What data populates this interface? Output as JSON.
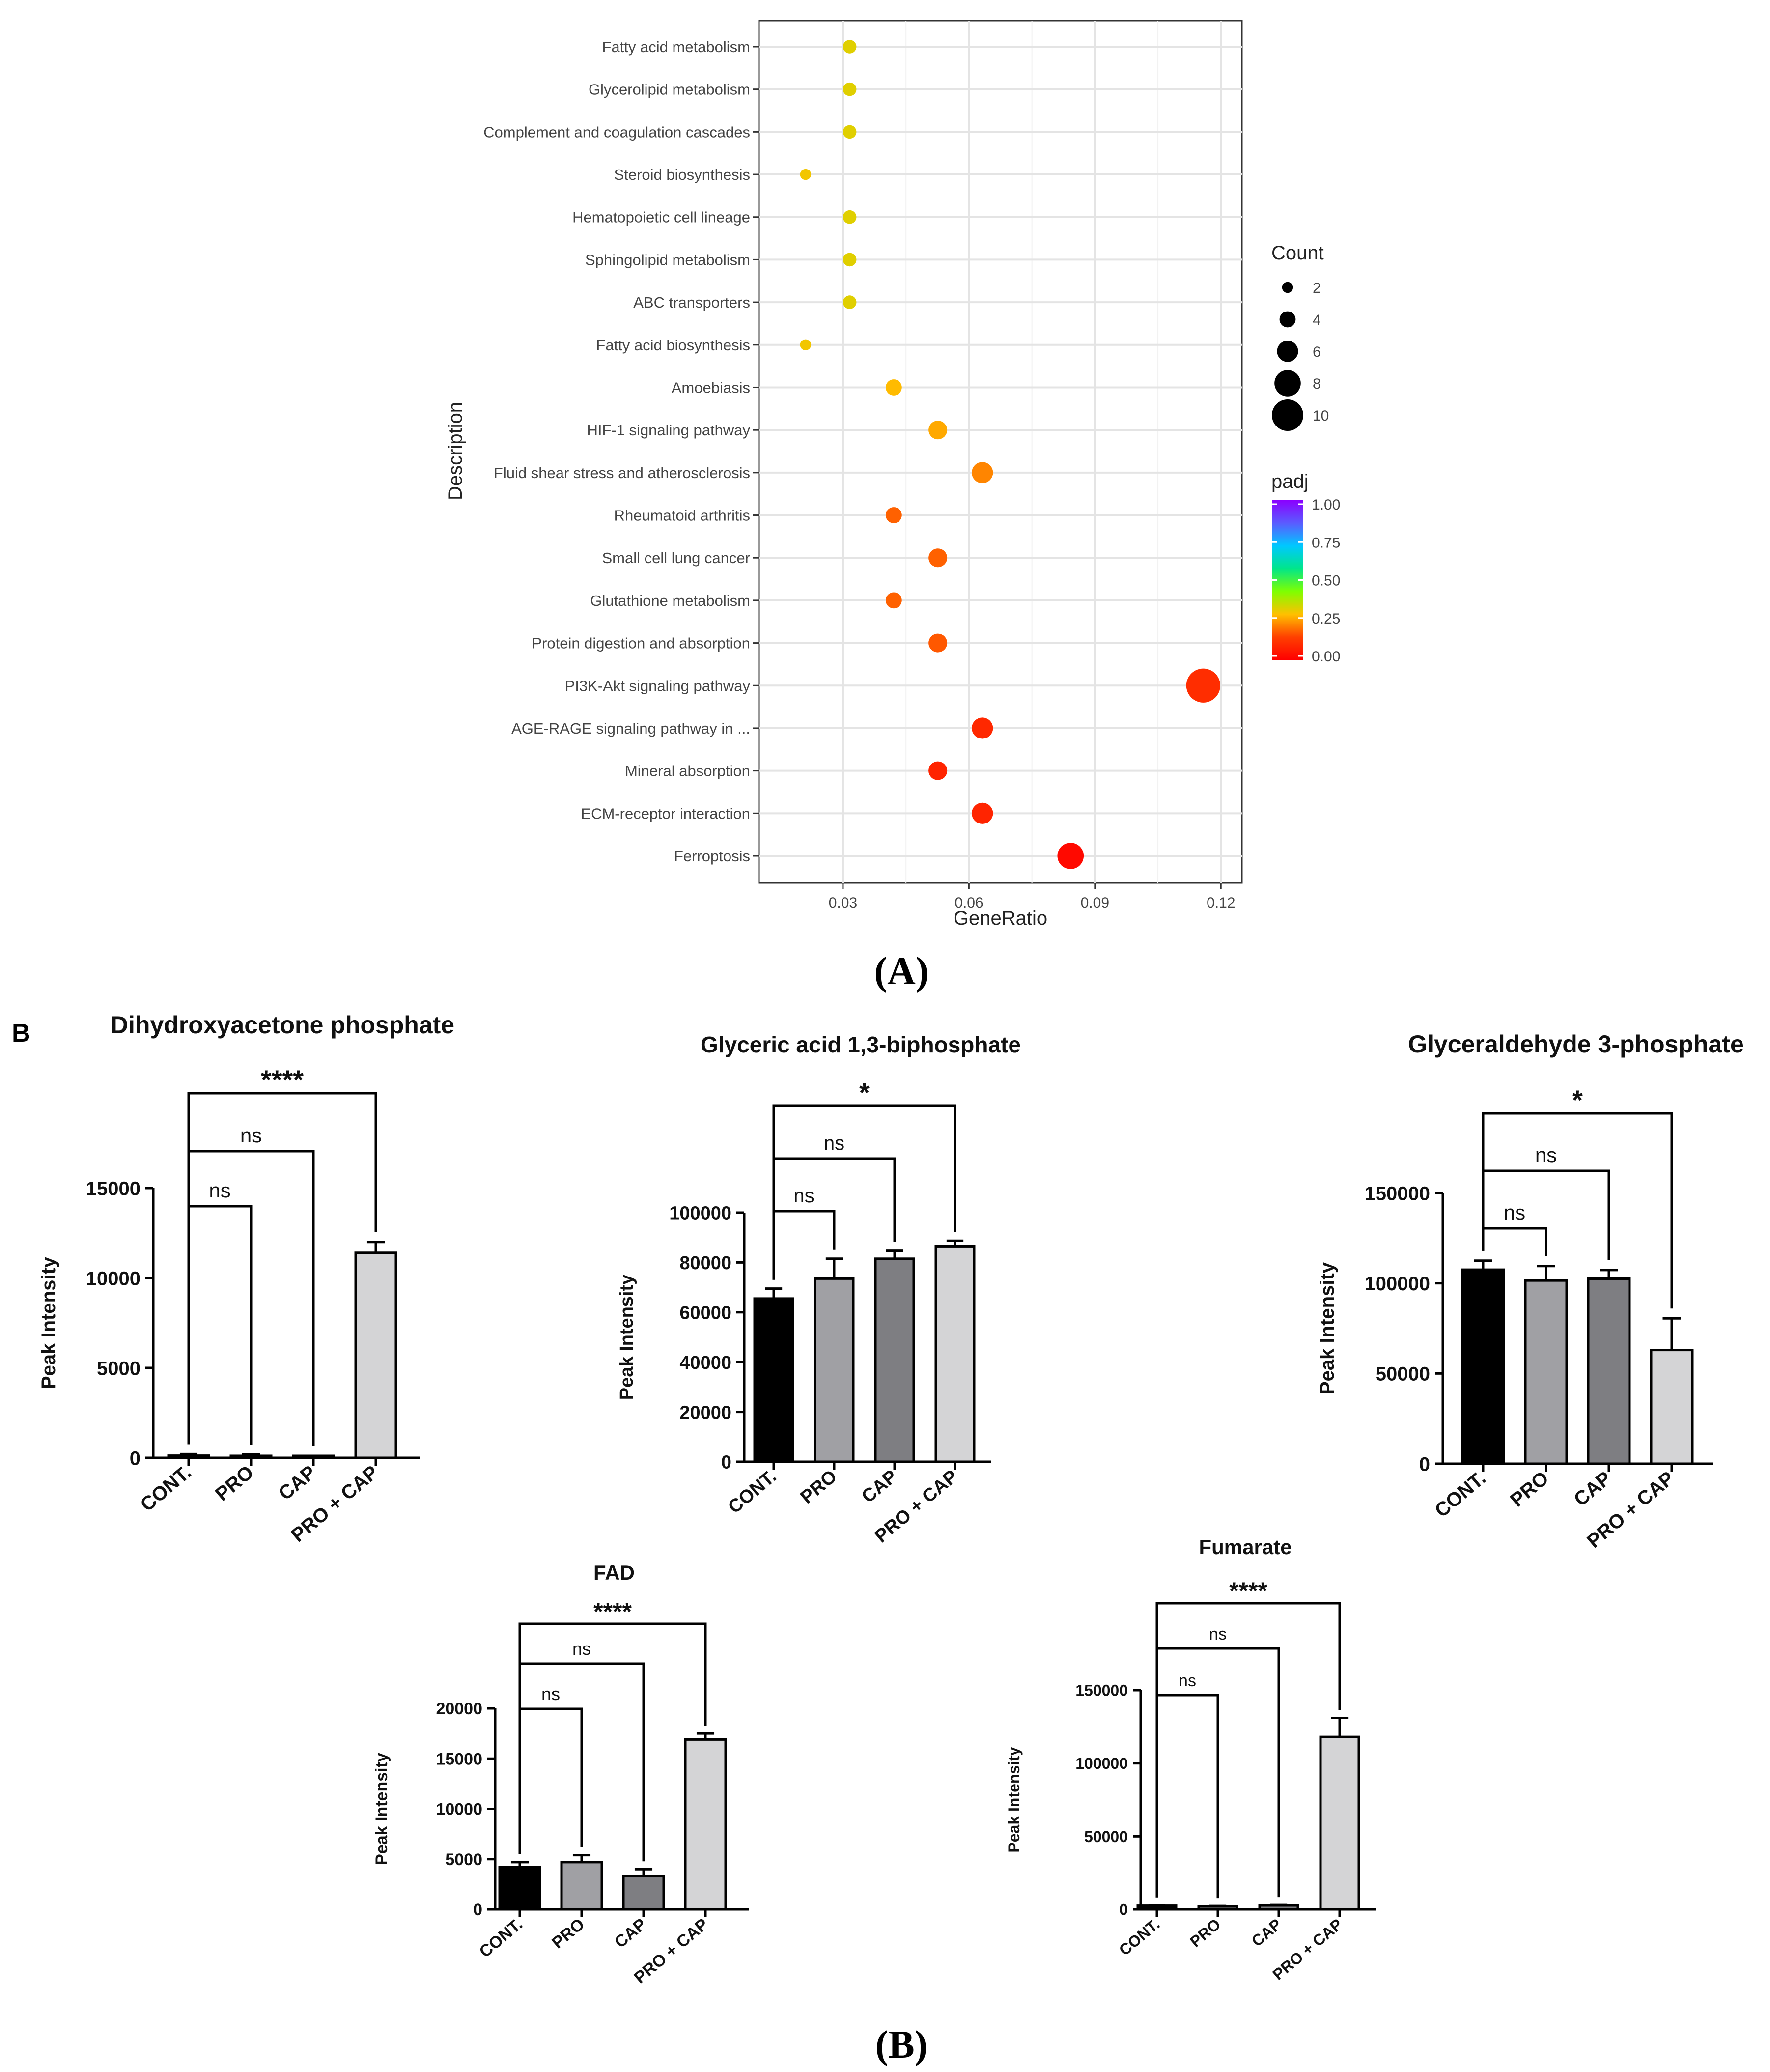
{
  "panel_a": {
    "caption": "(A)",
    "chart_data": {
      "type": "scatter",
      "title": "",
      "xlabel": "GeneRatio",
      "ylabel": "Description",
      "xlim": [
        0.01,
        0.125
      ],
      "xticks": [
        0.03,
        0.06,
        0.09,
        0.12
      ],
      "xtick_labels": [
        "0.03",
        "0.06",
        "0.09",
        "0.12"
      ],
      "categories": [
        "Fatty acid metabolism",
        "Glycerolipid metabolism",
        "Complement and coagulation cascades",
        "Steroid biosynthesis",
        "Hematopoietic cell lineage",
        "Sphingolipid metabolism",
        "ABC transporters",
        "Fatty acid biosynthesis",
        "Amoebiasis",
        "HIF-1 signaling pathway",
        "Fluid shear stress and atherosclerosis",
        "Rheumatoid arthritis",
        "Small cell lung cancer",
        "Glutathione metabolism",
        "Protein digestion and absorption",
        "PI3K-Akt signaling pathway",
        "AGE-RAGE signaling pathway in ...",
        "Mineral absorption",
        "ECM-receptor interaction",
        "Ferroptosis"
      ],
      "gene_ratio": [
        0.0316,
        0.0316,
        0.0316,
        0.0211,
        0.0316,
        0.0316,
        0.0316,
        0.0211,
        0.0421,
        0.0526,
        0.0632,
        0.0421,
        0.0526,
        0.0421,
        0.0526,
        0.1158,
        0.0632,
        0.0526,
        0.0632,
        0.0842
      ],
      "count": [
        3,
        3,
        3,
        2,
        3,
        3,
        3,
        2,
        4,
        5,
        6,
        4,
        5,
        4,
        5,
        11,
        6,
        5,
        6,
        8
      ],
      "padj": [
        0.32,
        0.32,
        0.32,
        0.3,
        0.32,
        0.32,
        0.32,
        0.3,
        0.28,
        0.26,
        0.22,
        0.18,
        0.18,
        0.18,
        0.17,
        0.1,
        0.09,
        0.08,
        0.08,
        0.02
      ],
      "legend_count": {
        "title": "Count",
        "values": [
          2,
          4,
          6,
          8,
          10
        ],
        "labels": [
          "2",
          "4",
          "6",
          "8",
          "10"
        ]
      },
      "legend_padj": {
        "title": "padj",
        "ticks": [
          1.0,
          0.75,
          0.5,
          0.25,
          0.0
        ],
        "labels": [
          "1.00",
          "0.75",
          "0.50",
          "0.25",
          "0.00"
        ],
        "colors": [
          "#8b00ff",
          "#5b5bff",
          "#00c8ff",
          "#00e68a",
          "#7fff00",
          "#ffc000",
          "#ff4000",
          "#ff0000"
        ]
      }
    }
  },
  "panel_b": {
    "letter": "B",
    "caption": "(B)",
    "groups": [
      "CONT.",
      "PRO",
      "CAP",
      "PRO + CAP"
    ],
    "bar_colors": [
      "#000000",
      "#a0a0a4",
      "#7e7e82",
      "#d4d4d6"
    ],
    "ylabel": "Peak Intensity",
    "chart_data": [
      {
        "type": "bar",
        "title": "Dihydroxyacetone phosphate",
        "ylabel": "Peak Intensity",
        "categories": [
          "CONT.",
          "PRO",
          "CAP",
          "PRO + CAP"
        ],
        "values": [
          120,
          110,
          60,
          11400
        ],
        "errors": [
          90,
          80,
          50,
          600
        ],
        "ylim": [
          0,
          15000
        ],
        "yticks": [
          0,
          5000,
          10000,
          15000
        ],
        "ytick_labels": [
          "0",
          "5000",
          "10000",
          "15000"
        ],
        "brackets": [
          {
            "from": "CONT.",
            "to": "PRO",
            "label": "ns"
          },
          {
            "from": "CONT.",
            "to": "CAP",
            "label": "ns"
          },
          {
            "from": "CONT.",
            "to": "PRO + CAP",
            "label": "****"
          }
        ]
      },
      {
        "type": "bar",
        "title": "Glyceric acid 1,3-biphosphate",
        "ylabel": "Peak Intensity",
        "categories": [
          "CONT.",
          "PRO",
          "CAP",
          "PRO + CAP"
        ],
        "values": [
          65500,
          73500,
          81500,
          86500
        ],
        "errors": [
          4000,
          8000,
          3200,
          2200
        ],
        "ylim": [
          0,
          100000
        ],
        "yticks": [
          0,
          20000,
          40000,
          60000,
          80000,
          100000
        ],
        "ytick_labels": [
          "0",
          "20000",
          "40000",
          "60000",
          "80000",
          "100000"
        ],
        "brackets": [
          {
            "from": "CONT.",
            "to": "PRO",
            "label": "ns"
          },
          {
            "from": "CONT.",
            "to": "CAP",
            "label": "ns"
          },
          {
            "from": "CONT.",
            "to": "PRO + CAP",
            "label": "*"
          }
        ]
      },
      {
        "type": "bar",
        "title": "Glyceraldehyde 3-phosphate",
        "ylabel": "Peak Intensity",
        "categories": [
          "CONT.",
          "PRO",
          "CAP",
          "PRO + CAP"
        ],
        "values": [
          107500,
          101500,
          102500,
          63000
        ],
        "errors": [
          5000,
          8000,
          4800,
          17500
        ],
        "ylim": [
          0,
          150000
        ],
        "yticks": [
          0,
          50000,
          100000,
          150000
        ],
        "ytick_labels": [
          "0",
          "50000",
          "100000",
          "150000"
        ],
        "brackets": [
          {
            "from": "CONT.",
            "to": "PRO",
            "label": "ns"
          },
          {
            "from": "CONT.",
            "to": "CAP",
            "label": "ns"
          },
          {
            "from": "CONT.",
            "to": "PRO + CAP",
            "label": "*"
          }
        ]
      },
      {
        "type": "bar",
        "title": "FAD",
        "ylabel": "Peak Intensity",
        "categories": [
          "CONT.",
          "PRO",
          "CAP",
          "PRO + CAP"
        ],
        "values": [
          4200,
          4700,
          3300,
          16900
        ],
        "errors": [
          500,
          700,
          700,
          600
        ],
        "ylim": [
          0,
          20000
        ],
        "yticks": [
          0,
          5000,
          10000,
          15000,
          20000
        ],
        "ytick_labels": [
          "0",
          "5000",
          "10000",
          "15000",
          "20000"
        ],
        "brackets": [
          {
            "from": "CONT.",
            "to": "PRO",
            "label": "ns"
          },
          {
            "from": "CONT.",
            "to": "CAP",
            "label": "ns"
          },
          {
            "from": "CONT.",
            "to": "PRO + CAP",
            "label": "****"
          }
        ]
      },
      {
        "type": "bar",
        "title": "Fumarate",
        "ylabel": "Peak Intensity",
        "categories": [
          "CONT.",
          "PRO",
          "CAP",
          "PRO + CAP"
        ],
        "values": [
          2500,
          2000,
          2700,
          118000
        ],
        "errors": [
          300,
          300,
          300,
          13000
        ],
        "ylim": [
          0,
          150000
        ],
        "yticks": [
          0,
          50000,
          100000,
          150000
        ],
        "ytick_labels": [
          "0",
          "50000",
          "100000",
          "150000"
        ],
        "brackets": [
          {
            "from": "CONT.",
            "to": "PRO",
            "label": "ns"
          },
          {
            "from": "CONT.",
            "to": "CAP",
            "label": "ns"
          },
          {
            "from": "CONT.",
            "to": "PRO + CAP",
            "label": "****"
          }
        ]
      }
    ]
  }
}
